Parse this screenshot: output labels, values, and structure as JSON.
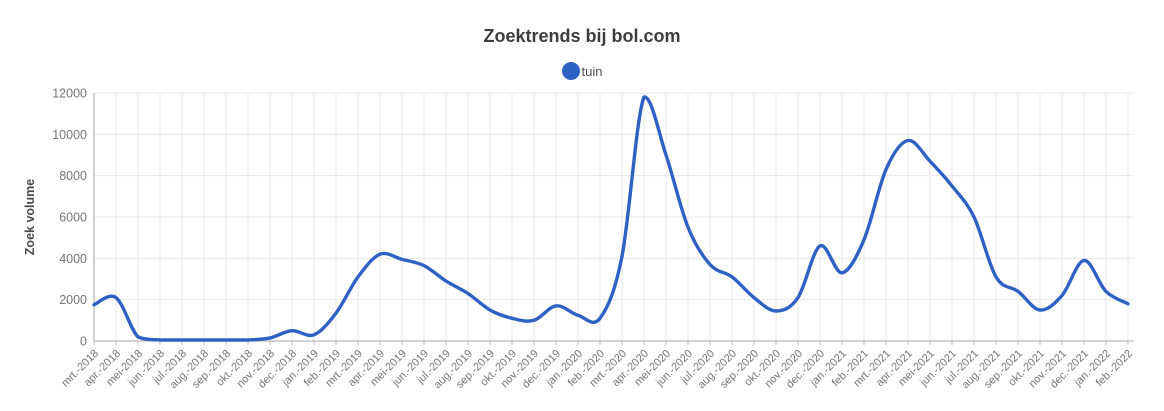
{
  "title": "Zoektrends bij bol.com",
  "legend": {
    "items": [
      {
        "label": "tuin",
        "color": "#2f61c5"
      }
    ]
  },
  "colors": {
    "accent": "#2f61c5",
    "grid": "#e7e7e7",
    "axis": "#a6a6a6",
    "tick_stub": "#bdbdbd",
    "tick_text": "#757575",
    "axis_title_text": "#4a4a4a",
    "title_text": "#3d3d3d"
  },
  "chart_data": {
    "type": "line",
    "title": "Zoektrends bij bol.com",
    "xlabel": "",
    "ylabel": "Zoek volume",
    "ylim": [
      0,
      12000
    ],
    "ytick_step": 2000,
    "yticks": [
      0,
      2000,
      4000,
      6000,
      8000,
      10000,
      12000
    ],
    "grid": true,
    "smooth": true,
    "legend_position": "top-center",
    "x_tick_rotation": 45,
    "categories": [
      "mrt.-2018",
      "apr.-2018",
      "mei-2018",
      "jun.-2018",
      "jul.-2018",
      "aug.-2018",
      "sep.-2018",
      "okt.-2018",
      "nov.-2018",
      "dec.-2018",
      "jan.-2019",
      "feb.-2019",
      "mrt.-2019",
      "apr.-2019",
      "mei-2019",
      "jun.-2019",
      "jul.-2019",
      "aug.-2019",
      "sep.-2019",
      "okt.-2019",
      "nov.-2019",
      "dec.-2019",
      "jan.-2020",
      "feb.-2020",
      "mrt.-2020",
      "apr.-2020",
      "mei-2020",
      "jun.-2020",
      "jul.-2020",
      "aug.-2020",
      "sep.-2020",
      "okt.-2020",
      "nov.-2020",
      "dec.-2020",
      "jan.-2021",
      "feb.-2021",
      "mrt.-2021",
      "apr.-2021",
      "mei-2021",
      "jun.-2021",
      "jul.-2021",
      "aug.-2021",
      "sep.-2021",
      "okt.-2021",
      "nov.-2021",
      "dec.-2021",
      "jan.-2022",
      "feb.-2022"
    ],
    "series": [
      {
        "name": "tuin",
        "color": "#2f61c5",
        "values": [
          1750,
          2100,
          200,
          50,
          50,
          50,
          50,
          50,
          150,
          500,
          300,
          1350,
          3100,
          4200,
          3950,
          3650,
          2900,
          2300,
          1500,
          1100,
          1000,
          1700,
          1250,
          1100,
          4100,
          11800,
          9000,
          5500,
          3700,
          3100,
          2100,
          1450,
          2100,
          4600,
          3300,
          4900,
          8300,
          9700,
          8700,
          7500,
          6000,
          3100,
          2400,
          1500,
          2200,
          3900,
          2400,
          1800
        ]
      }
    ]
  }
}
